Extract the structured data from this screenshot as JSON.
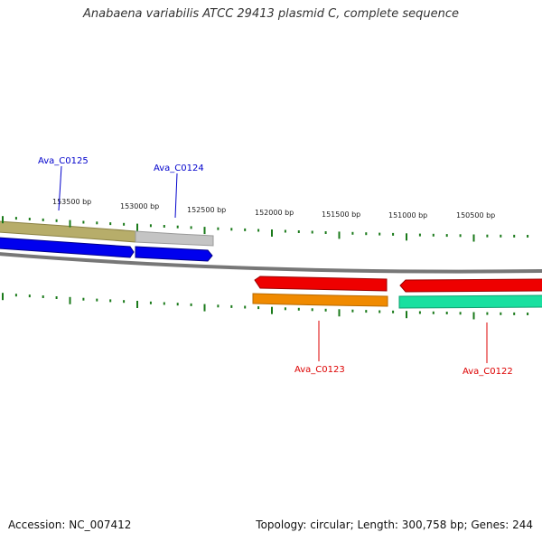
{
  "title": "Anabaena variabilis ATCC 29413 plasmid C, complete sequence",
  "footer": {
    "accession": "Accession: NC_007412",
    "summary": "Topology: circular; Length: 300,758 bp; Genes: 244"
  },
  "ticks": [
    "153500 bp",
    "153000 bp",
    "152500 bp",
    "152000 bp",
    "151500 bp",
    "151000 bp",
    "150500 bp"
  ],
  "genes": [
    {
      "name": "Ava_C0125",
      "strand": "forward",
      "color": "#0000cc"
    },
    {
      "name": "Ava_C0124",
      "strand": "forward",
      "color": "#0000cc"
    },
    {
      "name": "Ava_C0123",
      "strand": "reverse",
      "color": "#dd0000"
    },
    {
      "name": "Ava_C0122",
      "strand": "reverse",
      "color": "#dd0000"
    }
  ],
  "colors": {
    "backbone": "#777777",
    "tick": "#1a7a1a",
    "forward_gene": "#0000ee",
    "reverse_gene": "#ee0000",
    "cog_olive": "#b7ad6a",
    "cog_grey": "#bdbdbd",
    "cog_orange": "#f08a00",
    "cog_teal": "#19e0a0"
  }
}
